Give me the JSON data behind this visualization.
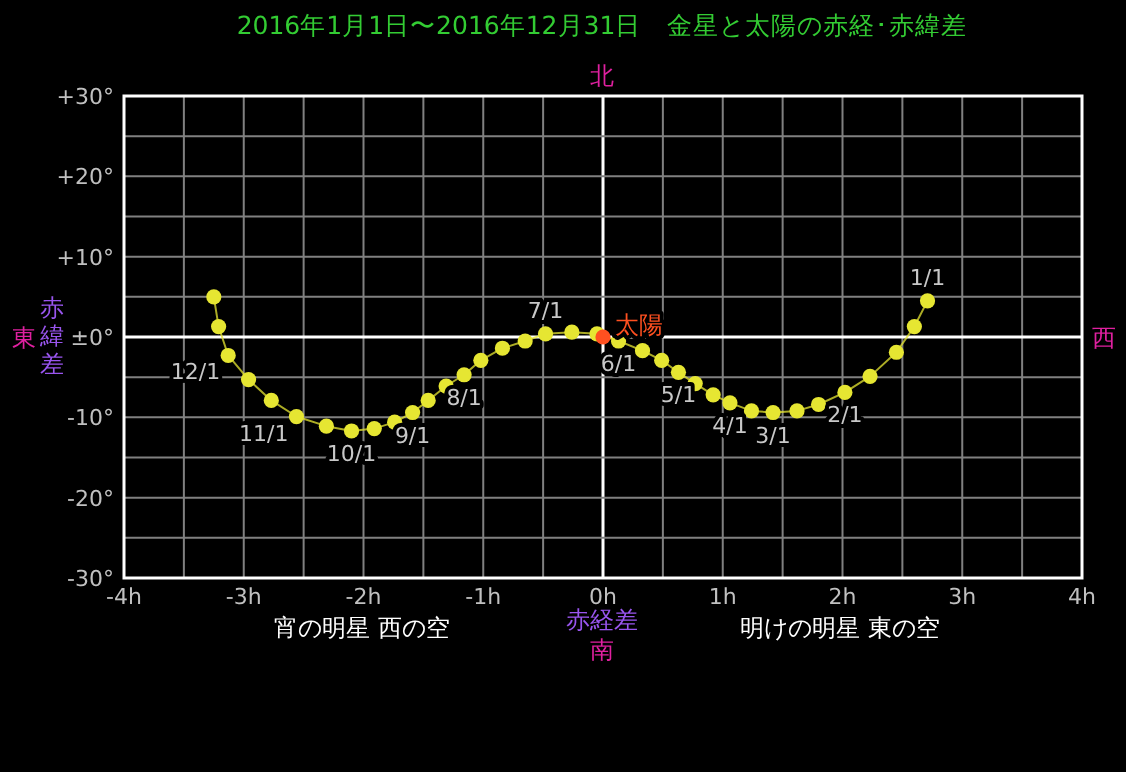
{
  "chart_data": {
    "type": "line",
    "title": "2016年1月1日〜2016年12月31日　金星と太陽の赤経･赤緯差",
    "xlabel": "赤経差",
    "ylabel": "赤緯差",
    "xlim": [
      -4,
      4
    ],
    "ylim": [
      -30,
      30
    ],
    "xticks": [
      {
        "value": -4,
        "label": "-4h"
      },
      {
        "value": -3.5,
        "label": null
      },
      {
        "value": -3,
        "label": "-3h"
      },
      {
        "value": -2.5,
        "label": null
      },
      {
        "value": -2,
        "label": "-2h"
      },
      {
        "value": -1.5,
        "label": null
      },
      {
        "value": -1,
        "label": "-1h"
      },
      {
        "value": -0.5,
        "label": null
      },
      {
        "value": 0,
        "label": "0h"
      },
      {
        "value": 0.5,
        "label": null
      },
      {
        "value": 1,
        "label": "1h"
      },
      {
        "value": 1.5,
        "label": null
      },
      {
        "value": 2,
        "label": "2h"
      },
      {
        "value": 2.5,
        "label": null
      },
      {
        "value": 3,
        "label": "3h"
      },
      {
        "value": 3.5,
        "label": null
      },
      {
        "value": 4,
        "label": "4h"
      }
    ],
    "yticks": [
      {
        "value": -30,
        "label": "-30°"
      },
      {
        "value": -25,
        "label": null
      },
      {
        "value": -20,
        "label": "-20°"
      },
      {
        "value": -15,
        "label": null
      },
      {
        "value": -10,
        "label": "-10°"
      },
      {
        "value": -5,
        "label": null
      },
      {
        "value": 0,
        "label": "±0°"
      },
      {
        "value": 5,
        "label": null
      },
      {
        "value": 10,
        "label": "+10°"
      },
      {
        "value": 15,
        "label": null
      },
      {
        "value": 20,
        "label": "+20°"
      },
      {
        "value": 25,
        "label": null
      },
      {
        "value": 30,
        "label": "+30°"
      }
    ],
    "grid": true,
    "marker": "circle",
    "line_style": "solid",
    "series": [
      {
        "color": "#e6e632",
        "x": [
          2.71,
          2.6,
          2.45,
          2.23,
          2.02,
          1.8,
          1.62,
          1.42,
          1.24,
          1.06,
          0.92,
          0.77,
          0.63,
          0.49,
          0.33,
          0.13,
          -0.05,
          -0.26,
          -0.48,
          -0.65,
          -0.84,
          -1.02,
          -1.16,
          -1.31,
          -1.46,
          -1.59,
          -1.74,
          -1.91,
          -2.1,
          -2.31,
          -2.56,
          -2.77,
          -2.96,
          -3.13,
          -3.21,
          -3.25
        ],
        "values": [
          4.5,
          1.3,
          -1.9,
          -4.9,
          -6.9,
          -8.4,
          -9.2,
          -9.4,
          -9.2,
          -8.2,
          -7.2,
          -5.8,
          -4.4,
          -2.9,
          -1.7,
          -0.5,
          0.4,
          0.6,
          0.4,
          -0.5,
          -1.4,
          -2.9,
          -4.7,
          -6.1,
          -7.9,
          -9.4,
          -10.6,
          -11.4,
          -11.7,
          -11.1,
          -9.9,
          -7.9,
          -5.3,
          -2.3,
          1.3,
          5
        ]
      },
      {
        "type": "scatter",
        "name": "太陽",
        "color": "#ff5020",
        "x": [
          0
        ],
        "values": [
          0
        ]
      }
    ],
    "annotations": [
      {
        "text": "1/1",
        "x": 2.71,
        "y": 4.5
      },
      {
        "text": "2/1",
        "x": 2.02,
        "y": -6.9
      },
      {
        "text": "3/1",
        "x": 1.42,
        "y": -9.4
      },
      {
        "text": "4/1",
        "x": 1.06,
        "y": -8.2
      },
      {
        "text": "5/1",
        "x": 0.63,
        "y": -4.4
      },
      {
        "text": "6/1",
        "x": 0.13,
        "y": -0.5
      },
      {
        "text": "7/1",
        "x": -0.48,
        "y": 0.4
      },
      {
        "text": "8/1",
        "x": -1.16,
        "y": -4.7
      },
      {
        "text": "9/1",
        "x": -1.59,
        "y": -9.4
      },
      {
        "text": "10/1",
        "x": -2.1,
        "y": -11.7
      },
      {
        "text": "11/1",
        "x": -2.56,
        "y": -9.9
      },
      {
        "text": "12/1",
        "x": -3.13,
        "y": -2.3
      },
      "北",
      "南",
      "東",
      "西",
      "宵の明星 西の空",
      "明けの明星 東の空"
    ]
  }
}
